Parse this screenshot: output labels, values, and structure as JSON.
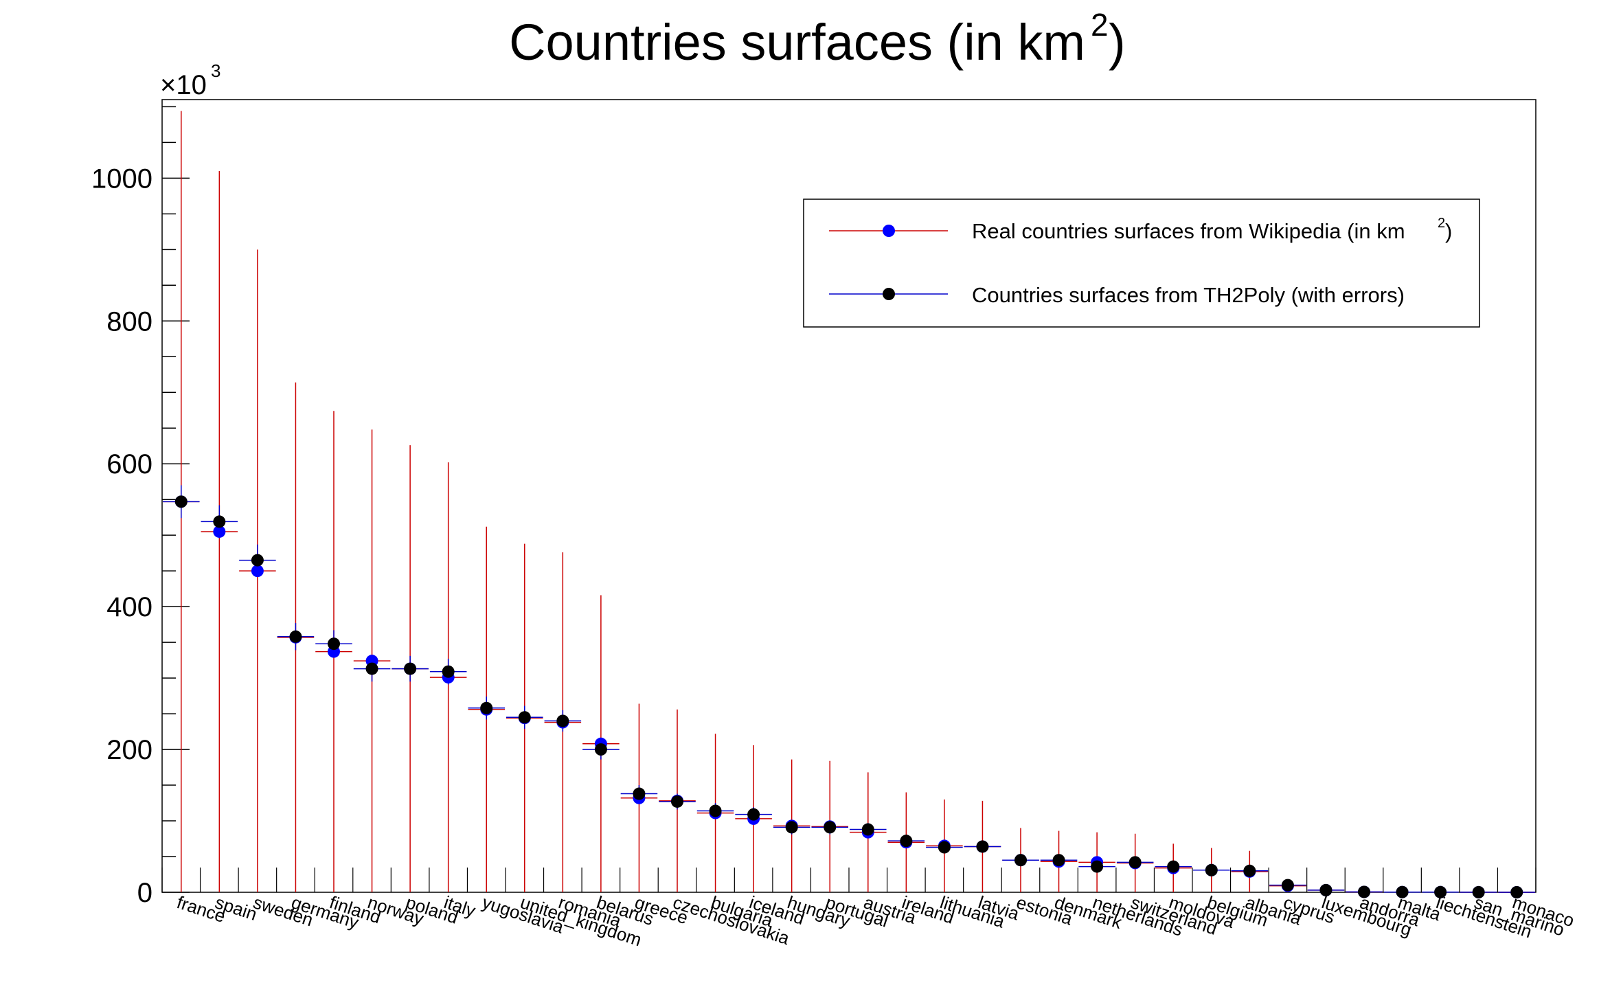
{
  "chart_data": {
    "type": "scatter",
    "title": "Countries surfaces (in km",
    "title_superscript": "2",
    "title_suffix": ")",
    "y_multiplier_prefix": "×10",
    "y_multiplier_exponent": "3",
    "ylim": [
      0,
      1110
    ],
    "xlim": [
      0,
      36
    ],
    "y_ticks": [
      0,
      200,
      400,
      600,
      800,
      1000
    ],
    "y_tick_labels": [
      "0",
      "200",
      "400",
      "600",
      "800",
      "1000"
    ],
    "grid": false,
    "legend_position": "top-right",
    "categories": [
      "france",
      "spain",
      "sweden",
      "germany",
      "finland",
      "norway",
      "poland",
      "italy",
      "yugoslavia",
      "united_kingdom",
      "romania",
      "belarus",
      "greece",
      "czechoslovakia",
      "bulgaria",
      "iceland",
      "hungary",
      "portugal",
      "austria",
      "ireland",
      "lithuania",
      "latvia",
      "estonia",
      "denmark",
      "netherlands",
      "switzerland",
      "moldova",
      "belgium",
      "albania",
      "cyprus",
      "luxembourg",
      "andorra",
      "malta",
      "liechtenstein",
      "san_marino",
      "monaco"
    ],
    "series": [
      {
        "name": "Real countries surfaces from Wikipedia (in km",
        "name_superscript": "2",
        "name_suffix": ")",
        "marker_color": "#0000ff",
        "error_color": "#cc0000",
        "values": [
          547,
          505,
          450,
          357,
          337,
          324,
          313,
          301,
          256,
          244,
          238,
          208,
          132,
          128,
          111,
          103,
          93,
          92,
          84,
          70,
          65,
          64,
          45,
          43,
          42,
          41,
          34,
          31,
          29,
          9,
          3,
          0.5,
          0.3,
          0.2,
          0.1,
          0.01
        ],
        "errors": [
          547,
          505,
          450,
          357,
          337,
          324,
          313,
          301,
          256,
          244,
          238,
          208,
          132,
          128,
          111,
          103,
          93,
          92,
          84,
          70,
          65,
          64,
          45,
          43,
          42,
          41,
          34,
          31,
          29,
          9,
          3,
          0.5,
          0.3,
          0.2,
          0.1,
          0.01
        ]
      },
      {
        "name": "Countries surfaces from TH2Poly (with errors)",
        "marker_color": "#000000",
        "error_color": "#0000cc",
        "values": [
          547,
          519,
          465,
          358,
          348,
          313,
          313,
          309,
          258,
          245,
          240,
          200,
          138,
          127,
          114,
          109,
          91,
          91,
          88,
          72,
          63,
          64,
          45,
          45,
          36,
          42,
          36,
          31,
          30,
          10,
          3,
          0.5,
          0.3,
          0.2,
          0.1,
          0.01
        ],
        "errors": [
          23,
          23,
          22,
          19,
          19,
          18,
          18,
          18,
          16,
          16,
          15,
          14,
          12,
          11,
          11,
          10,
          10,
          10,
          9,
          8,
          8,
          8,
          7,
          7,
          6,
          6,
          6,
          6,
          5,
          3,
          2,
          1,
          1,
          1,
          1,
          1
        ]
      }
    ]
  }
}
